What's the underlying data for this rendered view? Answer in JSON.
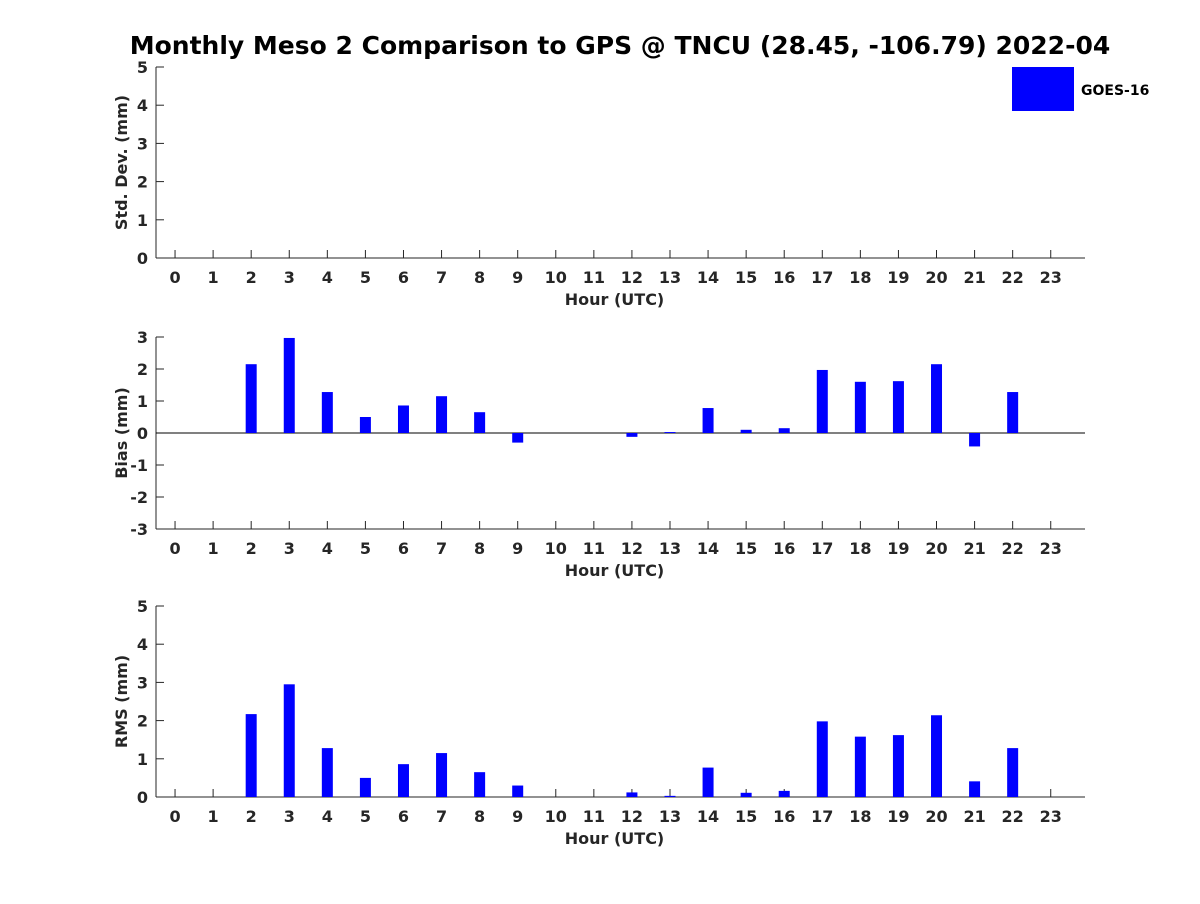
{
  "figure": {
    "title": "Monthly Meso 2 Comparison to GPS @ TNCU (28.45, -106.79) 2022-04",
    "legend": {
      "label": "GOES-16",
      "color": "#0000ff",
      "placement": "top-right"
    },
    "bar_color": "#0000ff"
  },
  "chart_data": [
    {
      "type": "bar",
      "ylabel": "Std. Dev. (mm)",
      "xlabel": "Hour (UTC)",
      "ylim": [
        0,
        5
      ],
      "yticks": [
        0,
        1,
        2,
        3,
        4,
        5
      ],
      "x": [
        0,
        1,
        2,
        3,
        4,
        5,
        6,
        7,
        8,
        9,
        10,
        11,
        12,
        13,
        14,
        15,
        16,
        17,
        18,
        19,
        20,
        21,
        22,
        23
      ],
      "series": [
        {
          "name": "GOES-16",
          "values": [
            null,
            null,
            null,
            null,
            null,
            null,
            null,
            null,
            null,
            null,
            null,
            null,
            null,
            null,
            null,
            null,
            null,
            null,
            null,
            null,
            null,
            null,
            null,
            null
          ]
        }
      ],
      "zero_line": false,
      "legend": true
    },
    {
      "type": "bar",
      "ylabel": "Bias (mm)",
      "xlabel": "Hour (UTC)",
      "ylim": [
        -3,
        3
      ],
      "yticks": [
        -3,
        -2,
        -1,
        0,
        1,
        2,
        3
      ],
      "x": [
        0,
        1,
        2,
        3,
        4,
        5,
        6,
        7,
        8,
        9,
        10,
        11,
        12,
        13,
        14,
        15,
        16,
        17,
        18,
        19,
        20,
        21,
        22,
        23
      ],
      "series": [
        {
          "name": "GOES-16",
          "values": [
            null,
            null,
            2.15,
            2.97,
            1.28,
            0.5,
            0.86,
            1.15,
            0.65,
            -0.3,
            null,
            null,
            -0.12,
            0.03,
            0.78,
            0.1,
            0.15,
            1.97,
            1.6,
            1.62,
            2.15,
            -0.42,
            1.28,
            null
          ]
        }
      ],
      "zero_line": true,
      "legend": false
    },
    {
      "type": "bar",
      "ylabel": "RMS (mm)",
      "xlabel": "Hour (UTC)",
      "ylim": [
        0,
        5
      ],
      "yticks": [
        0,
        1,
        2,
        3,
        4,
        5
      ],
      "x": [
        0,
        1,
        2,
        3,
        4,
        5,
        6,
        7,
        8,
        9,
        10,
        11,
        12,
        13,
        14,
        15,
        16,
        17,
        18,
        19,
        20,
        21,
        22,
        23
      ],
      "series": [
        {
          "name": "GOES-16",
          "values": [
            null,
            null,
            2.17,
            2.95,
            1.28,
            0.5,
            0.86,
            1.15,
            0.65,
            0.3,
            null,
            null,
            0.12,
            0.03,
            0.77,
            0.11,
            0.16,
            1.98,
            1.58,
            1.62,
            2.14,
            0.41,
            1.28,
            null
          ]
        }
      ],
      "zero_line": false,
      "legend": false
    }
  ]
}
